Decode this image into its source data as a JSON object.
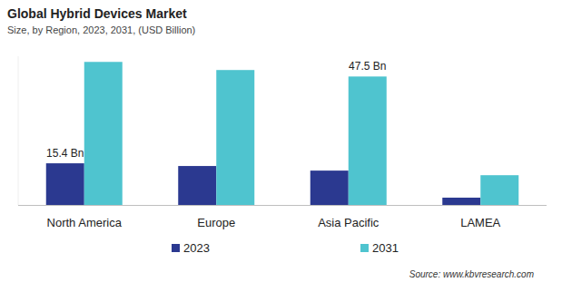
{
  "chart_data": {
    "type": "bar",
    "title": "Global Hybrid Devices Market",
    "subtitle": "Size, by Region, 2023, 2031, (USD Billion)",
    "source": "Source: www.kbvresearch.com",
    "categories": [
      "North America",
      "Europe",
      "Asia Pacific",
      "LAMEA"
    ],
    "series": [
      {
        "name": "2023",
        "color": "#2b3990",
        "values": [
          15.4,
          14.4,
          12.7,
          2.7
        ],
        "value_labels": [
          "15.4 Bn",
          null,
          null,
          null
        ]
      },
      {
        "name": "2031",
        "color": "#4fc4cf",
        "values": [
          52.9,
          49.9,
          47.5,
          11.0
        ],
        "value_labels": [
          null,
          null,
          "47.5 Bn",
          null
        ]
      }
    ],
    "ylim": [
      0,
      55
    ],
    "yticks": [],
    "grid": false,
    "legend": "bottom",
    "data_labels": true,
    "tick_labels": "x"
  }
}
